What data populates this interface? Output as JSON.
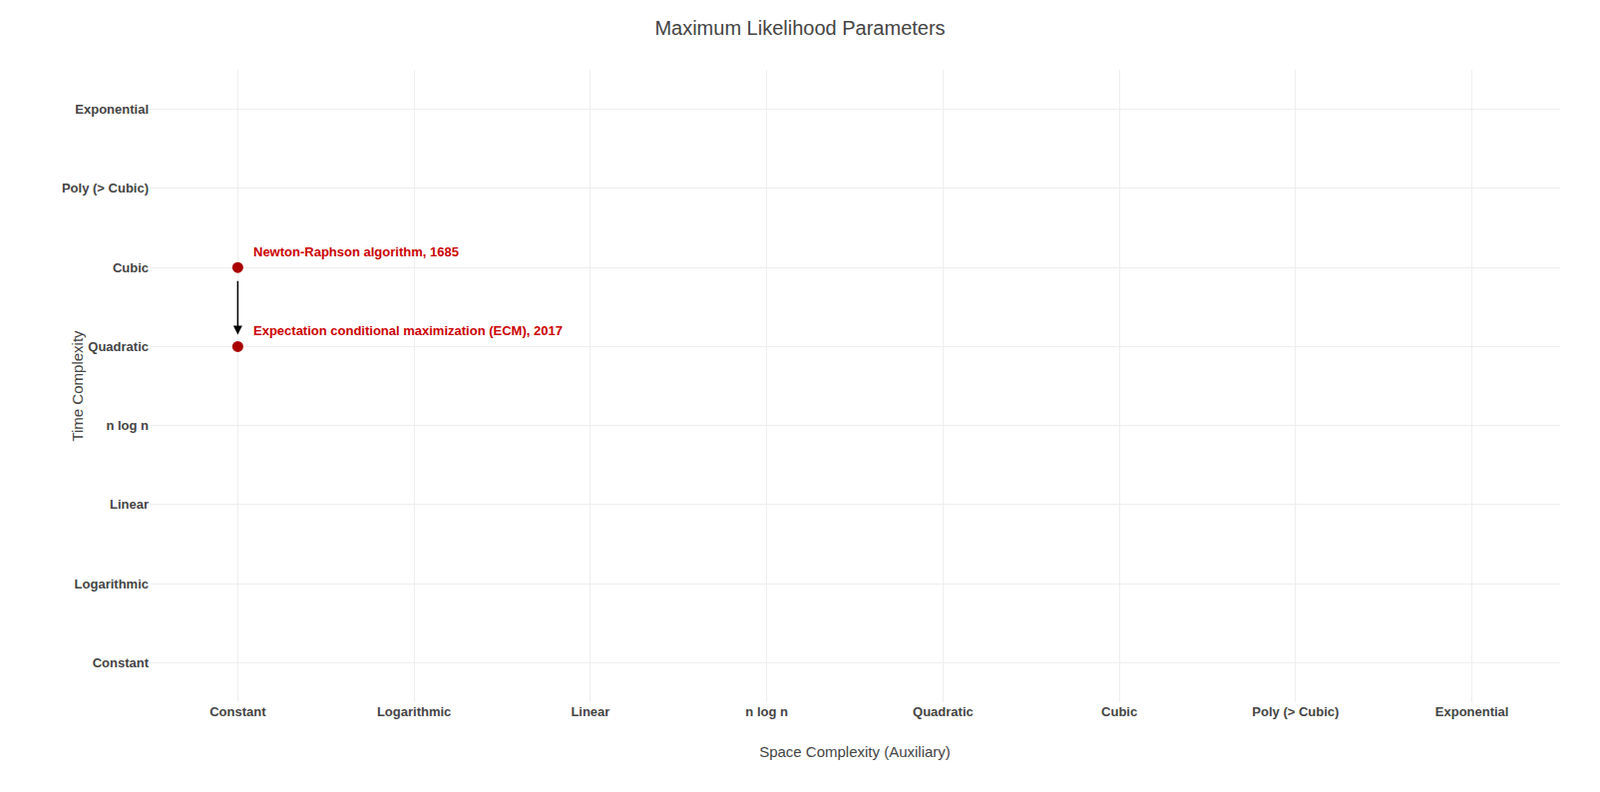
{
  "chart_data": {
    "type": "scatter",
    "title": "Maximum Likelihood Parameters",
    "xlabel": "Space Complexity (Auxiliary)",
    "ylabel": "Time Complexity",
    "x_categories": [
      "Constant",
      "Logarithmic",
      "Linear",
      "n log n",
      "Quadratic",
      "Cubic",
      "Poly (> Cubic)",
      "Exponential"
    ],
    "y_categories": [
      "Constant",
      "Logarithmic",
      "Linear",
      "n log n",
      "Quadratic",
      "Cubic",
      "Poly (> Cubic)",
      "Exponential"
    ],
    "points": [
      {
        "x": "Constant",
        "y": "Cubic",
        "color": "#aa0000"
      },
      {
        "x": "Constant",
        "y": "Quadratic",
        "color": "#aa0000"
      }
    ],
    "annotations": [
      {
        "text": "Newton-Raphson algorithm, 1685",
        "x": "Constant",
        "y": "Cubic",
        "color": "#cc0000"
      },
      {
        "text": "Expectation conditional maximization (ECM), 2017",
        "x": "Constant",
        "y": "Quadratic",
        "color": "#cc0000"
      }
    ],
    "arrow": {
      "x": "Constant",
      "y_start": "Cubic",
      "y_end": "Quadratic"
    },
    "grid": true
  }
}
